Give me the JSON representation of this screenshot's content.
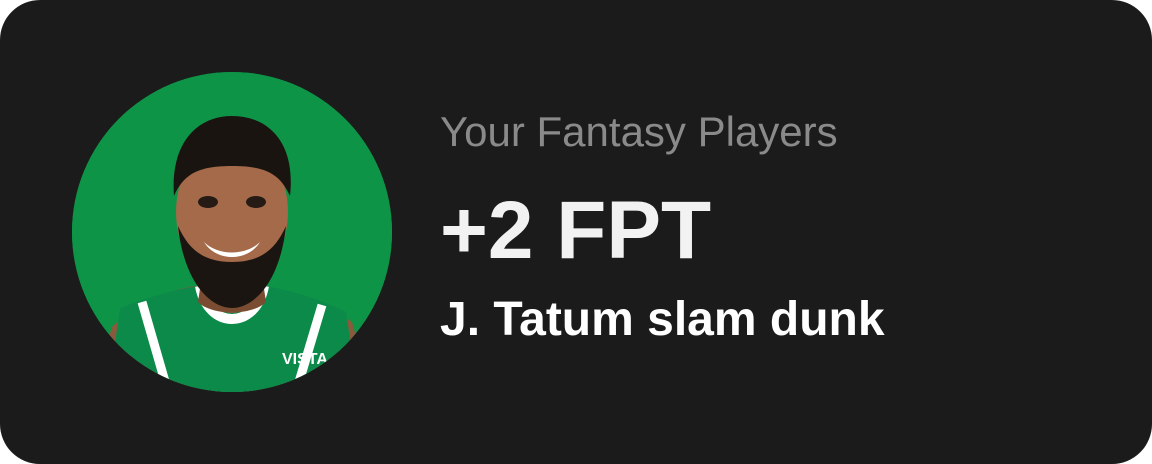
{
  "card": {
    "subtitle": "Your Fantasy Players",
    "points": "+2 FPT",
    "event": "J. Tatum slam dunk",
    "avatar_icon": "player-avatar-icon",
    "jersey_text": "VISTA",
    "colors": {
      "background": "#1b1b1b",
      "avatar_background": "#0e9447",
      "subtitle": "#8a8a8a",
      "points": "#f2f2f2",
      "event": "#ffffff"
    }
  }
}
